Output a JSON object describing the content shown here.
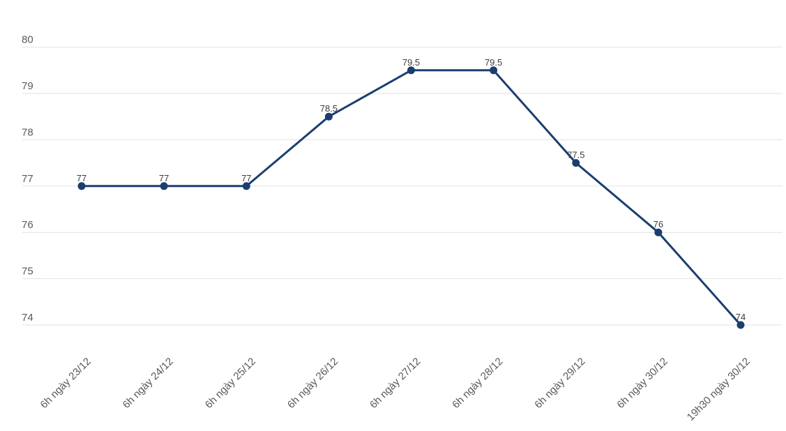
{
  "chart_data": {
    "type": "line",
    "title": "",
    "xlabel": "",
    "ylabel": "",
    "categories": [
      "6h ngày 23/12",
      "6h ngày 24/12",
      "6h ngày 25/12",
      "6h ngày 26/12",
      "6h ngày 27/12",
      "6h ngày 28/12",
      "6h ngày 29/12",
      "6h ngày 30/12",
      "19h30 ngày 30/12"
    ],
    "series": [
      {
        "name": "",
        "values": [
          77,
          77,
          77,
          78.5,
          79.5,
          79.5,
          77.5,
          76,
          74
        ],
        "data_labels": [
          "77",
          "77",
          "77",
          "78.5",
          "79.5",
          "79.5",
          "77.5",
          "76",
          "74"
        ]
      }
    ],
    "y_ticks": [
      80,
      79,
      78,
      77,
      76,
      75,
      74
    ],
    "ylim": [
      74,
      80
    ],
    "grid": "horizontal-only",
    "legend_position": "none",
    "x_label_rotation_deg": -45,
    "colors": {
      "line": "#1b3e6f",
      "point": "#1b3e6f",
      "gridline": "#e2e2e2",
      "axis_label": "#595959",
      "data_label": "#3d3d3d",
      "background": "#ffffff"
    }
  }
}
